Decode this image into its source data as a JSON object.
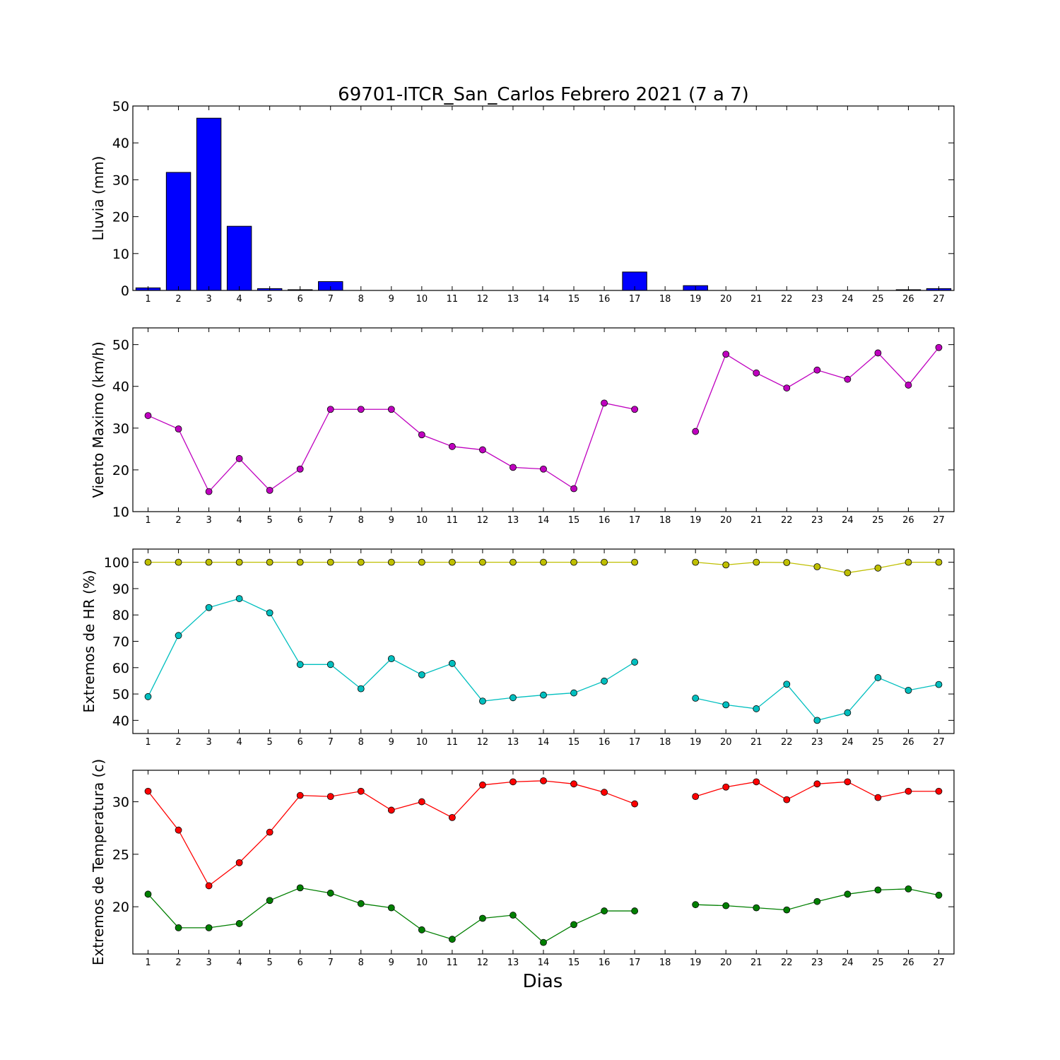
{
  "title": "69701-ITCR_San_Carlos Febrero 2021  (7 a 7)",
  "xlabel": "Dias",
  "chart_data": [
    {
      "type": "bar",
      "ylabel": "Lluvia (mm)",
      "ylim": [
        0,
        50
      ],
      "yticks": [
        0,
        10,
        20,
        30,
        40,
        50
      ],
      "categories": [
        "1",
        "2",
        "3",
        "4",
        "5",
        "6",
        "7",
        "8",
        "9",
        "10",
        "11",
        "12",
        "13",
        "14",
        "15",
        "16",
        "17",
        "18",
        "19",
        "20",
        "21",
        "22",
        "23",
        "24",
        "25",
        "26",
        "27"
      ],
      "colors": {
        "bar": "#0000ff"
      },
      "values": [
        0.7,
        32.0,
        46.7,
        17.4,
        0.5,
        0.2,
        2.4,
        0,
        0,
        0,
        0,
        0,
        0,
        0,
        0,
        0,
        5.0,
        0,
        1.3,
        0,
        0,
        0,
        0,
        0,
        0,
        0.2,
        0.5
      ]
    },
    {
      "type": "line",
      "ylabel": "Viento Maximo (km/h)",
      "ylim": [
        10,
        54
      ],
      "yticks": [
        10,
        20,
        30,
        40,
        50
      ],
      "categories": [
        "1",
        "2",
        "3",
        "4",
        "5",
        "6",
        "7",
        "8",
        "9",
        "10",
        "11",
        "12",
        "13",
        "14",
        "15",
        "16",
        "17",
        "18",
        "19",
        "20",
        "21",
        "22",
        "23",
        "24",
        "25",
        "26",
        "27"
      ],
      "series": [
        {
          "color": "#bf00bf",
          "values": [
            33.0,
            29.8,
            14.8,
            22.7,
            15.1,
            20.2,
            34.5,
            34.5,
            34.5,
            28.4,
            25.6,
            24.8,
            20.6,
            20.2,
            15.5,
            36.0,
            34.5,
            null,
            29.2,
            47.7,
            43.2,
            39.6,
            43.9,
            41.7,
            48.0,
            40.3,
            49.3
          ]
        }
      ]
    },
    {
      "type": "line",
      "ylabel": "Extremos de HR (%)",
      "ylim": [
        35,
        105
      ],
      "yticks": [
        40,
        50,
        60,
        70,
        80,
        90,
        100
      ],
      "categories": [
        "1",
        "2",
        "3",
        "4",
        "5",
        "6",
        "7",
        "8",
        "9",
        "10",
        "11",
        "12",
        "13",
        "14",
        "15",
        "16",
        "17",
        "18",
        "19",
        "20",
        "21",
        "22",
        "23",
        "24",
        "25",
        "26",
        "27"
      ],
      "series": [
        {
          "color": "#bfbf00",
          "values": [
            100,
            100,
            100,
            100,
            100,
            100,
            100,
            100,
            100,
            100,
            100,
            100,
            100,
            100,
            100,
            100,
            100,
            null,
            100,
            99,
            100,
            99.9,
            98.3,
            96,
            97.8,
            100,
            100
          ]
        },
        {
          "color": "#00bfbf",
          "values": [
            49,
            72.2,
            82.8,
            86.2,
            80.8,
            61.2,
            61.2,
            52,
            63.4,
            57.3,
            61.6,
            47.3,
            48.6,
            49.6,
            50.4,
            54.9,
            62.1,
            null,
            48.4,
            45.9,
            44.4,
            53.7,
            40,
            42.9,
            56.2,
            51.4,
            53.6
          ]
        }
      ]
    },
    {
      "type": "line",
      "ylabel": "Extremos de Temperatura (c)",
      "ylim": [
        15.5,
        33
      ],
      "yticks": [
        20,
        25,
        30
      ],
      "categories": [
        "1",
        "2",
        "3",
        "4",
        "5",
        "6",
        "7",
        "8",
        "9",
        "10",
        "11",
        "12",
        "13",
        "14",
        "15",
        "16",
        "17",
        "18",
        "19",
        "20",
        "21",
        "22",
        "23",
        "24",
        "25",
        "26",
        "27"
      ],
      "series": [
        {
          "color": "#ff0000",
          "values": [
            31.0,
            27.3,
            22.0,
            24.2,
            27.1,
            30.6,
            30.5,
            31.0,
            29.2,
            30.0,
            28.5,
            31.6,
            31.9,
            32.0,
            31.7,
            30.9,
            29.8,
            null,
            30.5,
            31.4,
            31.9,
            30.2,
            31.7,
            31.9,
            30.4,
            31.0,
            31.0
          ]
        },
        {
          "color": "#007f00",
          "values": [
            21.2,
            18.0,
            18.0,
            18.4,
            20.6,
            21.8,
            21.3,
            20.3,
            19.9,
            17.8,
            16.9,
            18.9,
            19.2,
            16.6,
            18.3,
            19.6,
            19.6,
            null,
            20.2,
            20.1,
            19.9,
            19.7,
            20.5,
            21.2,
            21.6,
            21.7,
            21.1
          ]
        }
      ]
    }
  ]
}
